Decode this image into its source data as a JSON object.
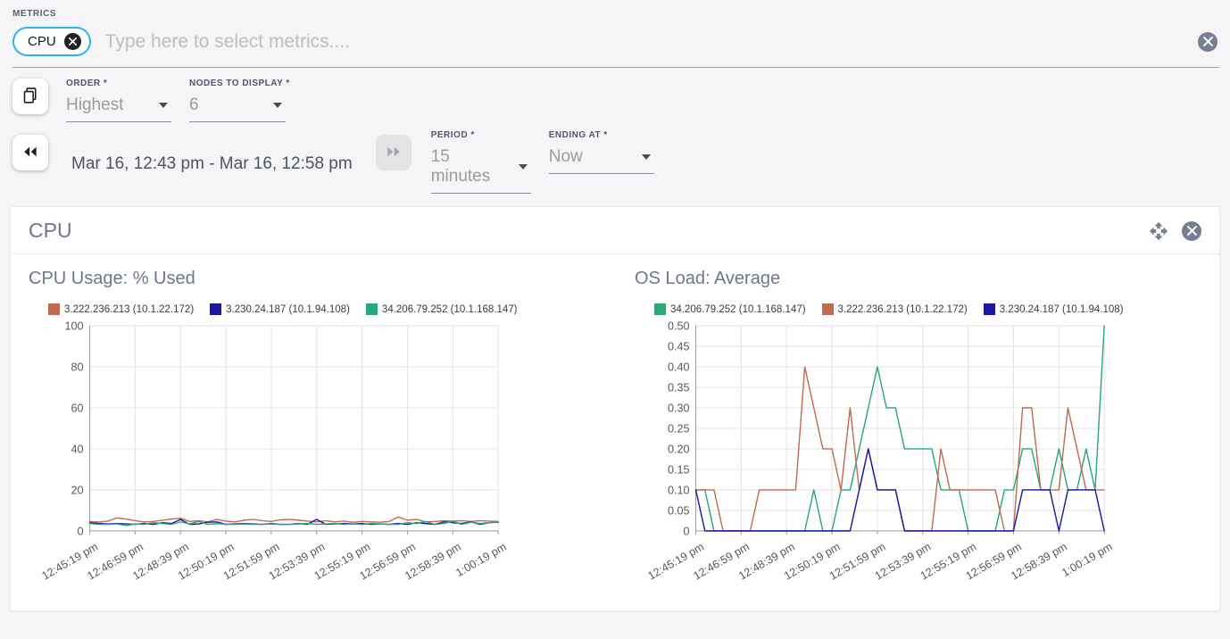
{
  "metrics_bar": {
    "label": "METRICS",
    "chip": "CPU",
    "placeholder": "Type here to select metrics...."
  },
  "controls": {
    "order_label": "ORDER *",
    "order_value": "Highest",
    "nodes_label": "NODES TO DISPLAY *",
    "nodes_value": "6",
    "time_range": "Mar 16, 12:43 pm - Mar 16, 12:58 pm",
    "period_label": "PERIOD *",
    "period_value": "15 minutes",
    "ending_label": "ENDING AT *",
    "ending_value": "Now"
  },
  "panel": {
    "title": "CPU"
  },
  "colors": {
    "accent": "#2cb3ef",
    "icon_grey": "#767f92",
    "grid": "#e4e4e6",
    "axis": "#9b9b9e",
    "tick_text": "#58585c",
    "salmon": "#c06a52",
    "navy": "#1a16a8",
    "green": "#29a878"
  },
  "chart_data": [
    {
      "type": "line",
      "title": "CPU Usage: % Used",
      "xlabel": "",
      "ylabel": "",
      "ylim": [
        0,
        100
      ],
      "grid": true,
      "legend_position": "top",
      "y_tick_labels": [
        "0",
        "20",
        "40",
        "60",
        "80",
        "100"
      ],
      "x_tick_labels": [
        "12:45:19 pm",
        "12:46:59 pm",
        "12:48:39 pm",
        "12:50:19 pm",
        "12:51:59 pm",
        "12:53:39 pm",
        "12:55:19 pm",
        "12:56:59 pm",
        "12:58:39 pm",
        "1:00:19 pm"
      ],
      "series": [
        {
          "name": "3.222.236.213 (10.1.22.172)",
          "color": "#c06a52",
          "values": [
            4.6,
            4.3,
            4.8,
            6.3,
            5.8,
            5.0,
            4.4,
            4.6,
            5.2,
            5.8,
            6.2,
            4.6,
            5.0,
            4.4,
            5.6,
            4.8,
            4.4,
            5.2,
            5.6,
            5.0,
            4.6,
            5.4,
            5.6,
            5.2,
            4.8,
            4.4,
            5.0,
            4.4,
            4.8,
            4.2,
            4.6,
            4.4,
            4.2,
            4.6,
            6.8,
            5.2,
            5.6,
            4.4,
            4.6,
            5.0,
            4.8,
            5.0,
            4.6,
            5.0,
            4.8,
            4.6
          ]
        },
        {
          "name": "3.230.24.187 (10.1.94.108)",
          "color": "#1a16a8",
          "values": [
            4.0,
            3.6,
            3.4,
            3.6,
            3.4,
            3.2,
            3.6,
            3.2,
            4.0,
            3.6,
            5.6,
            3.2,
            3.4,
            4.2,
            4.4,
            3.2,
            3.4,
            3.6,
            3.4,
            3.2,
            3.6,
            3.2,
            3.2,
            3.6,
            3.2,
            5.6,
            3.2,
            3.4,
            3.6,
            3.4,
            3.6,
            3.2,
            3.4,
            3.2,
            3.6,
            3.2,
            4.0,
            3.6,
            3.2,
            4.4,
            4.0,
            3.6,
            4.4,
            3.2,
            4.0,
            4.2
          ]
        },
        {
          "name": "34.206.79.252 (10.1.168.147)",
          "color": "#29a878",
          "values": [
            3.6,
            3.2,
            3.2,
            3.4,
            2.6,
            3.4,
            3.2,
            4.0,
            3.6,
            3.2,
            4.4,
            3.4,
            4.6,
            3.2,
            3.6,
            3.2,
            3.2,
            3.4,
            3.2,
            3.2,
            3.4,
            3.2,
            3.2,
            3.4,
            3.6,
            3.2,
            3.4,
            3.6,
            3.2,
            3.4,
            3.2,
            3.6,
            3.4,
            3.2,
            3.2,
            4.0,
            3.6,
            4.6,
            3.2,
            3.6,
            4.6,
            3.2,
            4.2,
            3.6,
            4.0,
            4.4
          ]
        }
      ]
    },
    {
      "type": "line",
      "title": "OS Load: Average",
      "xlabel": "",
      "ylabel": "",
      "ylim": [
        0,
        0.5
      ],
      "grid": true,
      "legend_position": "top",
      "y_tick_labels": [
        "0",
        "0.05",
        "0.10",
        "0.15",
        "0.20",
        "0.25",
        "0.30",
        "0.35",
        "0.40",
        "0.45",
        "0.50"
      ],
      "x_tick_labels": [
        "12:45:19 pm",
        "12:46:59 pm",
        "12:48:39 pm",
        "12:50:19 pm",
        "12:51:59 pm",
        "12:53:39 pm",
        "12:55:19 pm",
        "12:56:59 pm",
        "12:58:39 pm",
        "1:00:19 pm"
      ],
      "series": [
        {
          "name": "34.206.79.252 (10.1.168.147)",
          "color": "#29a878",
          "values": [
            0.1,
            0.1,
            0,
            0,
            0,
            0,
            0,
            0,
            0,
            0,
            0,
            0,
            0,
            0.1,
            0,
            0,
            0.1,
            0.1,
            0.2,
            0.3,
            0.4,
            0.3,
            0.3,
            0.2,
            0.2,
            0.2,
            0.2,
            0.1,
            0.1,
            0.1,
            0,
            0,
            0,
            0,
            0.1,
            0.1,
            0.2,
            0.2,
            0.1,
            0.1,
            0.2,
            0.1,
            0.1,
            0.2,
            0.1,
            0.5
          ]
        },
        {
          "name": "3.222.236.213 (10.1.22.172)",
          "color": "#c06a52",
          "values": [
            0.1,
            0.1,
            0.1,
            0,
            0,
            0,
            0,
            0.1,
            0.1,
            0.1,
            0.1,
            0.1,
            0.4,
            0.3,
            0.2,
            0.2,
            0.1,
            0.3,
            0.1,
            0.2,
            0.1,
            0.1,
            0.1,
            0,
            0,
            0,
            0,
            0.2,
            0.1,
            0.1,
            0.1,
            0.1,
            0.1,
            0.1,
            0,
            0,
            0.3,
            0.3,
            0.1,
            0.1,
            0.1,
            0.3,
            0.2,
            0.1,
            0.1,
            0.1
          ]
        },
        {
          "name": "3.230.24.187 (10.1.94.108)",
          "color": "#1a16a8",
          "values": [
            0.1,
            0,
            0,
            0,
            0,
            0,
            0,
            0,
            0,
            0,
            0,
            0,
            0,
            0,
            0,
            0,
            0,
            0,
            0.1,
            0.2,
            0.1,
            0.1,
            0.1,
            0,
            0,
            0,
            0,
            0,
            0,
            0,
            0,
            0,
            0,
            0,
            0,
            0,
            0.1,
            0.1,
            0.1,
            0.1,
            0,
            0.1,
            0.1,
            0.1,
            0.1,
            0
          ]
        }
      ]
    }
  ]
}
